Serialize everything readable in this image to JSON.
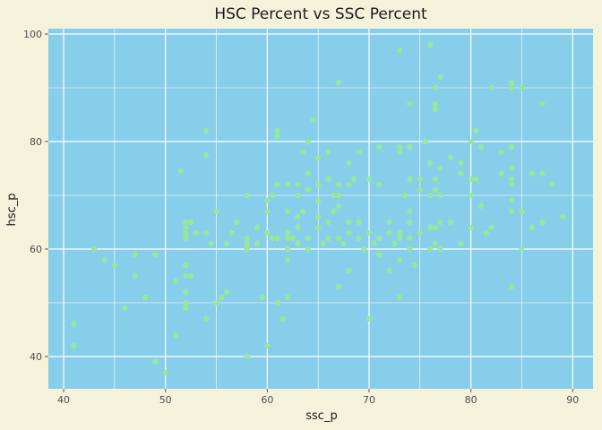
{
  "chart_data": {
    "type": "scatter",
    "title": "HSC Percent vs SSC Percent",
    "xlabel": "ssc_p",
    "ylabel": "hsc_p",
    "xlim": [
      38.5,
      92
    ],
    "ylim": [
      34,
      101
    ],
    "xticks": [
      40,
      50,
      60,
      70,
      80,
      90
    ],
    "yticks": [
      40,
      60,
      80,
      100
    ],
    "grid": true,
    "colors": {
      "panel": "#87ceeb",
      "grid": "#ffffff",
      "point": "#98e89a",
      "background": "#f5f2dc"
    },
    "points": [
      [
        41,
        46
      ],
      [
        41,
        42
      ],
      [
        43,
        60
      ],
      [
        44,
        58
      ],
      [
        45,
        57
      ],
      [
        46,
        49
      ],
      [
        47,
        59
      ],
      [
        47,
        55
      ],
      [
        48,
        51
      ],
      [
        49,
        59
      ],
      [
        49,
        39
      ],
      [
        50,
        37
      ],
      [
        51,
        54
      ],
      [
        51,
        44
      ],
      [
        51.5,
        74.5
      ],
      [
        52,
        65
      ],
      [
        52,
        64
      ],
      [
        52,
        63
      ],
      [
        52,
        62
      ],
      [
        52,
        57
      ],
      [
        52,
        55
      ],
      [
        52,
        52
      ],
      [
        52,
        50
      ],
      [
        52,
        49
      ],
      [
        52.5,
        55
      ],
      [
        52.5,
        65
      ],
      [
        53,
        63
      ],
      [
        54,
        82
      ],
      [
        54,
        77.5
      ],
      [
        54,
        63
      ],
      [
        54,
        47
      ],
      [
        54.5,
        61
      ],
      [
        55,
        67
      ],
      [
        55,
        50
      ],
      [
        55.5,
        51
      ],
      [
        56,
        61
      ],
      [
        56,
        52
      ],
      [
        56.5,
        63
      ],
      [
        57,
        65
      ],
      [
        58,
        62
      ],
      [
        58,
        61
      ],
      [
        58,
        60
      ],
      [
        58,
        70
      ],
      [
        58,
        40
      ],
      [
        59,
        61
      ],
      [
        59,
        64
      ],
      [
        59.5,
        51
      ],
      [
        60,
        69
      ],
      [
        60,
        67
      ],
      [
        60,
        63
      ],
      [
        60,
        42
      ],
      [
        60.5,
        62
      ],
      [
        60.5,
        70
      ],
      [
        61,
        72
      ],
      [
        61,
        81
      ],
      [
        61,
        82
      ],
      [
        61,
        62
      ],
      [
        61,
        50
      ],
      [
        61.5,
        47
      ],
      [
        62,
        72
      ],
      [
        62,
        67
      ],
      [
        62,
        63
      ],
      [
        62,
        62
      ],
      [
        62,
        60
      ],
      [
        62,
        58
      ],
      [
        62,
        51
      ],
      [
        62.5,
        62
      ],
      [
        63,
        70
      ],
      [
        63,
        66
      ],
      [
        63,
        64
      ],
      [
        63,
        61
      ],
      [
        63,
        72
      ],
      [
        63.5,
        67
      ],
      [
        63.5,
        78
      ],
      [
        64,
        80
      ],
      [
        64,
        74
      ],
      [
        64,
        71
      ],
      [
        64,
        62
      ],
      [
        64,
        60
      ],
      [
        64.5,
        84
      ],
      [
        65,
        77
      ],
      [
        65,
        72
      ],
      [
        65,
        69
      ],
      [
        65,
        66
      ],
      [
        65,
        64
      ],
      [
        65.5,
        61
      ],
      [
        66,
        78
      ],
      [
        66,
        73
      ],
      [
        66,
        65
      ],
      [
        66,
        62
      ],
      [
        66.5,
        67
      ],
      [
        66.5,
        70
      ],
      [
        67,
        91
      ],
      [
        67,
        72
      ],
      [
        67,
        70
      ],
      [
        67,
        68
      ],
      [
        67,
        62
      ],
      [
        67,
        53
      ],
      [
        67.5,
        61
      ],
      [
        68,
        76
      ],
      [
        68,
        72
      ],
      [
        68,
        65
      ],
      [
        68,
        63
      ],
      [
        68,
        56
      ],
      [
        68.5,
        73
      ],
      [
        69,
        78
      ],
      [
        69,
        65
      ],
      [
        69,
        62
      ],
      [
        69.5,
        60
      ],
      [
        70,
        73
      ],
      [
        70,
        63
      ],
      [
        70,
        47
      ],
      [
        70.5,
        61
      ],
      [
        71,
        79
      ],
      [
        71,
        72
      ],
      [
        71,
        62
      ],
      [
        71,
        59
      ],
      [
        72,
        65
      ],
      [
        72,
        63
      ],
      [
        72,
        56
      ],
      [
        72.5,
        61
      ],
      [
        73,
        97
      ],
      [
        73,
        79
      ],
      [
        73,
        78
      ],
      [
        73,
        63
      ],
      [
        73,
        62
      ],
      [
        73,
        58
      ],
      [
        73,
        51
      ],
      [
        73.5,
        70
      ],
      [
        74,
        87
      ],
      [
        74,
        79
      ],
      [
        74,
        73
      ],
      [
        74,
        67
      ],
      [
        74,
        65
      ],
      [
        74,
        62
      ],
      [
        74,
        60
      ],
      [
        74.5,
        57
      ],
      [
        75,
        73
      ],
      [
        75,
        71
      ],
      [
        75,
        63
      ],
      [
        75.5,
        80
      ],
      [
        76,
        98
      ],
      [
        76,
        76
      ],
      [
        76,
        70
      ],
      [
        76,
        64
      ],
      [
        76,
        60
      ],
      [
        76.5,
        73
      ],
      [
        76.5,
        90
      ],
      [
        76.5,
        87
      ],
      [
        76.5,
        86
      ],
      [
        76.5,
        71
      ],
      [
        76.5,
        61
      ],
      [
        76.5,
        64
      ],
      [
        77,
        92
      ],
      [
        77,
        75
      ],
      [
        77,
        70
      ],
      [
        77,
        65
      ],
      [
        77,
        60
      ],
      [
        78,
        77
      ],
      [
        78,
        65
      ],
      [
        79,
        76
      ],
      [
        79,
        74
      ],
      [
        79,
        61
      ],
      [
        80,
        80
      ],
      [
        80,
        73
      ],
      [
        80,
        70
      ],
      [
        80,
        64
      ],
      [
        80.5,
        73
      ],
      [
        80.5,
        82
      ],
      [
        81,
        79
      ],
      [
        81,
        68
      ],
      [
        81.5,
        63
      ],
      [
        82,
        90
      ],
      [
        82,
        64
      ],
      [
        83,
        78
      ],
      [
        83,
        74
      ],
      [
        84,
        91
      ],
      [
        84,
        90
      ],
      [
        84,
        79
      ],
      [
        84,
        75
      ],
      [
        84,
        73
      ],
      [
        84,
        72
      ],
      [
        84,
        69
      ],
      [
        84,
        67
      ],
      [
        84,
        53
      ],
      [
        85,
        90
      ],
      [
        85,
        67
      ],
      [
        85,
        60
      ],
      [
        86,
        74
      ],
      [
        86,
        64
      ],
      [
        87,
        87
      ],
      [
        87,
        74
      ],
      [
        87,
        65
      ],
      [
        88,
        72
      ],
      [
        89,
        66
      ]
    ]
  }
}
